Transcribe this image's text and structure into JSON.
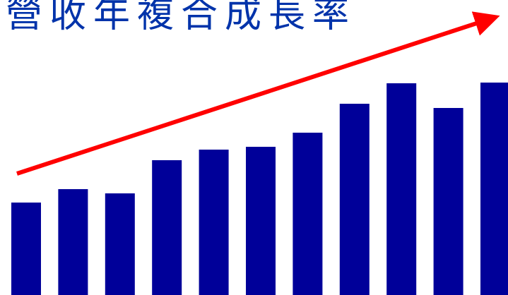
{
  "chart_data": {
    "type": "bar",
    "title": "營收年複合成長率",
    "values": [
      131,
      150,
      144,
      191,
      206,
      210,
      230,
      271,
      300,
      265,
      301
    ],
    "ylim": [
      0,
      301
    ],
    "trend_arrow": true,
    "grid": false,
    "colors": {
      "bar": "#000099",
      "arrow": "#ff0000",
      "title": "#0033aa"
    }
  }
}
